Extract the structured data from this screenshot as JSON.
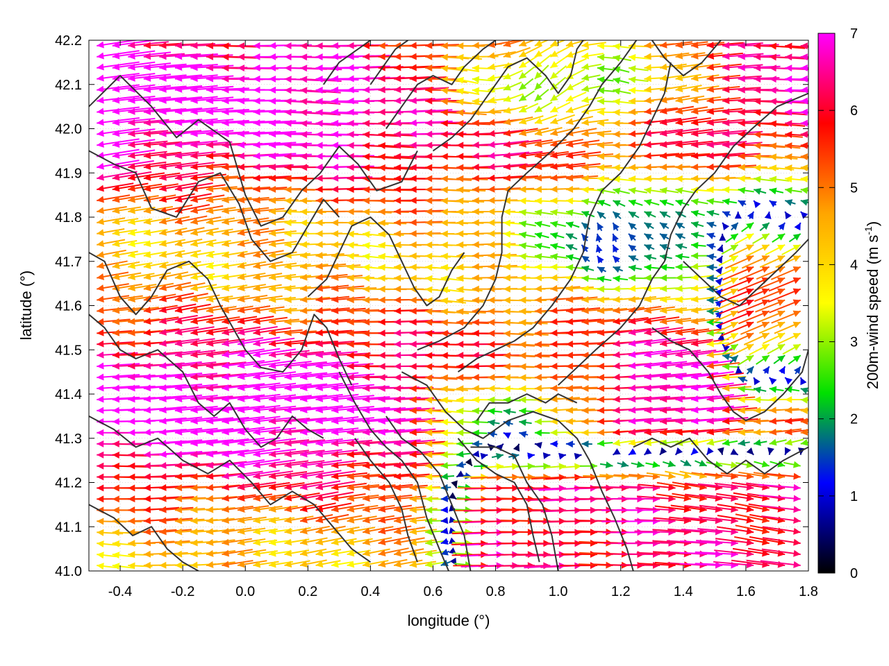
{
  "chart_data": {
    "type": "vector-field",
    "xlabel": "longitude (°)",
    "ylabel": "latitude (°)",
    "colorbar_label_main": "200m-wind speed (m s",
    "colorbar_label_sup": "-1",
    "colorbar_label_close": ")",
    "xlim": [
      -0.5,
      1.8
    ],
    "ylim": [
      41.0,
      42.2
    ],
    "xticks": [
      "-0.4",
      "-0.2",
      "0.0",
      "0.2",
      "0.4",
      "0.6",
      "0.8",
      "1.0",
      "1.2",
      "1.4",
      "1.6",
      "1.8"
    ],
    "xtick_values": [
      -0.4,
      -0.2,
      0.0,
      0.2,
      0.4,
      0.6,
      0.8,
      1.0,
      1.2,
      1.4,
      1.6,
      1.8
    ],
    "yticks": [
      "41.0",
      "41.1",
      "41.2",
      "41.3",
      "41.4",
      "41.5",
      "41.6",
      "41.7",
      "41.8",
      "41.9",
      "42.0",
      "42.1",
      "42.2"
    ],
    "ytick_values": [
      41.0,
      41.1,
      41.2,
      41.3,
      41.4,
      41.5,
      41.6,
      41.7,
      41.8,
      41.9,
      42.0,
      42.1,
      42.2
    ],
    "colorbar_ticks": [
      "0",
      "1",
      "2",
      "3",
      "4",
      "5",
      "6",
      "7"
    ],
    "colorbar_range": [
      0,
      7
    ],
    "colormap": [
      "#000000",
      "#0000ff",
      "#00e000",
      "#ffff00",
      "#ffa500",
      "#ff0000",
      "#ff00ff"
    ],
    "grid": "dotted",
    "contour_color": "#333333",
    "contours": [
      [
        [
          -0.5,
          42.05
        ],
        [
          -0.4,
          42.12
        ],
        [
          -0.3,
          42.05
        ],
        [
          -0.22,
          41.98
        ],
        [
          -0.15,
          42.02
        ],
        [
          -0.05,
          41.97
        ],
        [
          0.0,
          41.85
        ],
        [
          0.05,
          41.78
        ],
        [
          0.12,
          41.8
        ],
        [
          0.18,
          41.86
        ],
        [
          0.24,
          41.9
        ],
        [
          0.3,
          41.96
        ],
        [
          0.36,
          41.92
        ],
        [
          0.42,
          41.86
        ],
        [
          0.5,
          41.88
        ],
        [
          0.55,
          41.95
        ]
      ],
      [
        [
          -0.5,
          41.95
        ],
        [
          -0.42,
          41.92
        ],
        [
          -0.35,
          41.9
        ],
        [
          -0.3,
          41.82
        ],
        [
          -0.22,
          41.8
        ],
        [
          -0.15,
          41.88
        ],
        [
          -0.08,
          41.9
        ],
        [
          -0.02,
          41.83
        ],
        [
          0.02,
          41.75
        ],
        [
          0.08,
          41.7
        ],
        [
          0.15,
          41.72
        ],
        [
          0.2,
          41.78
        ],
        [
          0.25,
          41.84
        ],
        [
          0.3,
          41.8
        ]
      ],
      [
        [
          -0.5,
          41.72
        ],
        [
          -0.45,
          41.7
        ],
        [
          -0.4,
          41.62
        ],
        [
          -0.35,
          41.58
        ],
        [
          -0.3,
          41.62
        ],
        [
          -0.25,
          41.68
        ],
        [
          -0.18,
          41.7
        ],
        [
          -0.12,
          41.66
        ],
        [
          -0.08,
          41.6
        ],
        [
          -0.04,
          41.55
        ],
        [
          0.0,
          41.5
        ],
        [
          0.05,
          41.46
        ],
        [
          0.12,
          41.45
        ],
        [
          0.18,
          41.5
        ],
        [
          0.22,
          41.58
        ],
        [
          0.26,
          41.55
        ],
        [
          0.3,
          41.48
        ],
        [
          0.34,
          41.42
        ]
      ],
      [
        [
          -0.5,
          41.58
        ],
        [
          -0.45,
          41.55
        ],
        [
          -0.4,
          41.5
        ],
        [
          -0.35,
          41.48
        ],
        [
          -0.28,
          41.5
        ],
        [
          -0.2,
          41.45
        ],
        [
          -0.15,
          41.38
        ],
        [
          -0.1,
          41.35
        ],
        [
          -0.05,
          41.38
        ],
        [
          0.0,
          41.32
        ],
        [
          0.05,
          41.28
        ],
        [
          0.1,
          41.3
        ],
        [
          0.15,
          41.35
        ],
        [
          0.2,
          41.32
        ],
        [
          0.25,
          41.3
        ]
      ],
      [
        [
          -0.5,
          41.35
        ],
        [
          -0.42,
          41.32
        ],
        [
          -0.35,
          41.28
        ],
        [
          -0.28,
          41.3
        ],
        [
          -0.2,
          41.25
        ],
        [
          -0.12,
          41.22
        ],
        [
          -0.05,
          41.25
        ],
        [
          0.02,
          41.2
        ],
        [
          0.08,
          41.15
        ],
        [
          0.15,
          41.18
        ],
        [
          0.22,
          41.15
        ],
        [
          0.28,
          41.1
        ],
        [
          0.34,
          41.05
        ],
        [
          0.4,
          41.02
        ]
      ],
      [
        [
          -0.5,
          41.15
        ],
        [
          -0.42,
          41.12
        ],
        [
          -0.36,
          41.08
        ],
        [
          -0.3,
          41.1
        ],
        [
          -0.25,
          41.05
        ],
        [
          -0.2,
          41.02
        ],
        [
          -0.15,
          41.0
        ]
      ],
      [
        [
          0.3,
          41.45
        ],
        [
          0.35,
          41.38
        ],
        [
          0.4,
          41.32
        ],
        [
          0.45,
          41.28
        ],
        [
          0.5,
          41.25
        ],
        [
          0.55,
          41.2
        ],
        [
          0.58,
          41.12
        ],
        [
          0.62,
          41.05
        ],
        [
          0.65,
          41.0
        ]
      ],
      [
        [
          0.35,
          41.3
        ],
        [
          0.4,
          41.25
        ],
        [
          0.46,
          41.2
        ],
        [
          0.5,
          41.14
        ],
        [
          0.52,
          41.08
        ],
        [
          0.55,
          41.02
        ]
      ],
      [
        [
          0.45,
          41.35
        ],
        [
          0.5,
          41.3
        ],
        [
          0.56,
          41.27
        ],
        [
          0.62,
          41.22
        ],
        [
          0.66,
          41.15
        ],
        [
          0.7,
          41.08
        ],
        [
          0.72,
          41.0
        ]
      ],
      [
        [
          0.5,
          41.45
        ],
        [
          0.58,
          41.42
        ],
        [
          0.64,
          41.36
        ],
        [
          0.7,
          41.32
        ],
        [
          0.76,
          41.3
        ],
        [
          0.84,
          41.34
        ],
        [
          0.92,
          41.36
        ],
        [
          1.0,
          41.34
        ],
        [
          1.06,
          41.3
        ],
        [
          1.1,
          41.25
        ],
        [
          1.14,
          41.18
        ],
        [
          1.18,
          41.12
        ],
        [
          1.22,
          41.05
        ],
        [
          1.24,
          41.0
        ]
      ],
      [
        [
          0.68,
          41.3
        ],
        [
          0.74,
          41.25
        ],
        [
          0.8,
          41.22
        ],
        [
          0.86,
          41.2
        ],
        [
          0.9,
          41.15
        ],
        [
          0.92,
          41.08
        ],
        [
          0.94,
          41.02
        ]
      ],
      [
        [
          0.72,
          41.28
        ],
        [
          0.8,
          41.28
        ],
        [
          0.86,
          41.26
        ],
        [
          0.9,
          41.2
        ],
        [
          0.95,
          41.15
        ],
        [
          0.98,
          41.08
        ],
        [
          1.0,
          41.0
        ]
      ],
      [
        [
          0.74,
          41.34
        ],
        [
          0.78,
          41.38
        ],
        [
          0.84,
          41.38
        ],
        [
          0.9,
          41.4
        ],
        [
          0.96,
          41.38
        ],
        [
          1.0,
          41.4
        ],
        [
          1.06,
          41.38
        ]
      ],
      [
        [
          0.55,
          41.5
        ],
        [
          0.62,
          41.52
        ],
        [
          0.7,
          41.55
        ],
        [
          0.76,
          41.6
        ],
        [
          0.8,
          41.66
        ],
        [
          0.82,
          41.72
        ],
        [
          0.82,
          41.8
        ],
        [
          0.84,
          41.86
        ],
        [
          0.9,
          41.9
        ],
        [
          0.98,
          41.95
        ],
        [
          1.05,
          42.0
        ],
        [
          1.1,
          42.05
        ],
        [
          1.14,
          42.1
        ],
        [
          1.2,
          42.15
        ],
        [
          1.25,
          42.2
        ]
      ],
      [
        [
          0.68,
          41.45
        ],
        [
          0.74,
          41.48
        ],
        [
          0.8,
          41.5
        ],
        [
          0.86,
          41.52
        ],
        [
          0.92,
          41.55
        ],
        [
          0.98,
          41.6
        ],
        [
          1.04,
          41.66
        ],
        [
          1.08,
          41.72
        ],
        [
          1.1,
          41.8
        ],
        [
          1.14,
          41.86
        ],
        [
          1.2,
          41.9
        ],
        [
          1.26,
          41.96
        ],
        [
          1.3,
          42.02
        ],
        [
          1.34,
          42.08
        ],
        [
          1.36,
          42.15
        ]
      ],
      [
        [
          1.0,
          41.42
        ],
        [
          1.06,
          41.46
        ],
        [
          1.12,
          41.5
        ],
        [
          1.2,
          41.55
        ],
        [
          1.26,
          41.6
        ],
        [
          1.3,
          41.66
        ],
        [
          1.34,
          41.7
        ],
        [
          1.36,
          41.76
        ],
        [
          1.4,
          41.82
        ],
        [
          1.44,
          41.86
        ],
        [
          1.5,
          41.9
        ],
        [
          1.56,
          41.96
        ],
        [
          1.62,
          42.0
        ],
        [
          1.7,
          42.05
        ],
        [
          1.8,
          42.08
        ]
      ],
      [
        [
          1.3,
          41.55
        ],
        [
          1.36,
          41.52
        ],
        [
          1.42,
          41.5
        ],
        [
          1.48,
          41.45
        ],
        [
          1.52,
          41.4
        ],
        [
          1.56,
          41.36
        ],
        [
          1.6,
          41.34
        ],
        [
          1.66,
          41.36
        ],
        [
          1.72,
          41.4
        ],
        [
          1.78,
          41.45
        ],
        [
          1.8,
          41.5
        ]
      ],
      [
        [
          1.4,
          41.7
        ],
        [
          1.46,
          41.66
        ],
        [
          1.52,
          41.62
        ],
        [
          1.58,
          41.6
        ],
        [
          1.64,
          41.64
        ],
        [
          1.7,
          41.68
        ],
        [
          1.76,
          41.72
        ],
        [
          1.8,
          41.75
        ]
      ],
      [
        [
          1.24,
          41.28
        ],
        [
          1.3,
          41.3
        ],
        [
          1.36,
          41.28
        ],
        [
          1.42,
          41.3
        ],
        [
          1.48,
          41.25
        ],
        [
          1.54,
          41.22
        ],
        [
          1.6,
          41.25
        ],
        [
          1.66,
          41.22
        ],
        [
          1.72,
          41.25
        ],
        [
          1.8,
          41.28
        ]
      ],
      [
        [
          0.45,
          42.0
        ],
        [
          0.5,
          42.05
        ],
        [
          0.55,
          42.1
        ],
        [
          0.6,
          42.12
        ],
        [
          0.66,
          42.1
        ],
        [
          0.7,
          42.14
        ],
        [
          0.76,
          42.18
        ],
        [
          0.8,
          42.2
        ]
      ],
      [
        [
          0.6,
          41.95
        ],
        [
          0.66,
          41.98
        ],
        [
          0.72,
          42.02
        ],
        [
          0.76,
          42.06
        ],
        [
          0.8,
          42.1
        ],
        [
          0.84,
          42.14
        ],
        [
          0.9,
          42.16
        ],
        [
          0.96,
          42.12
        ],
        [
          1.0,
          42.08
        ],
        [
          1.04,
          42.12
        ],
        [
          1.06,
          42.18
        ],
        [
          1.08,
          42.2
        ]
      ],
      [
        [
          0.4,
          42.1
        ],
        [
          0.44,
          42.14
        ],
        [
          0.48,
          42.18
        ],
        [
          0.52,
          42.2
        ]
      ],
      [
        [
          1.3,
          42.2
        ],
        [
          1.34,
          42.16
        ],
        [
          1.4,
          42.12
        ],
        [
          1.46,
          42.15
        ],
        [
          1.52,
          42.2
        ]
      ],
      [
        [
          0.25,
          42.1
        ],
        [
          0.3,
          42.15
        ],
        [
          0.36,
          42.18
        ],
        [
          0.4,
          42.2
        ]
      ],
      [
        [
          0.2,
          41.62
        ],
        [
          0.26,
          41.66
        ],
        [
          0.3,
          41.72
        ],
        [
          0.34,
          41.78
        ],
        [
          0.4,
          41.8
        ],
        [
          0.46,
          41.76
        ],
        [
          0.5,
          41.7
        ],
        [
          0.54,
          41.64
        ],
        [
          0.58,
          41.6
        ],
        [
          0.62,
          41.62
        ],
        [
          0.66,
          41.68
        ],
        [
          0.7,
          41.72
        ]
      ]
    ],
    "notes_rendering": "Wind arrows are drawn from a smooth procedural field approximating the depicted flow."
  }
}
